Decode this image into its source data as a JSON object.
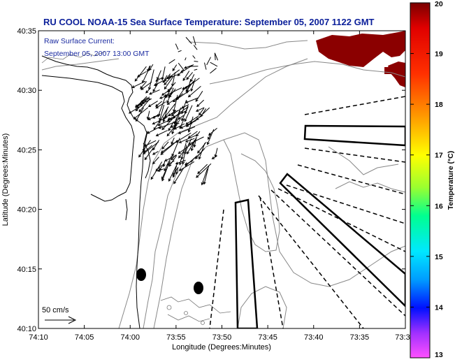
{
  "title": "RU COOL  NOAA-15  Sea Surface Temperature:  September 05, 2007 1122 GMT",
  "overlay_note": {
    "line1": "Raw Surface Current:",
    "line2": "September 05, 2007 13:00 GMT"
  },
  "scale_label": "50 cm/s",
  "x_axis": {
    "label": "Longitude (Degrees:Minutes)",
    "ticks": [
      "74:10",
      "74:05",
      "74:00",
      "73:55",
      "73:50",
      "73:45",
      "73:40",
      "73:35",
      "73:3"
    ]
  },
  "y_axis": {
    "label": "Latitude (Degrees:Minutes)",
    "ticks": [
      "40:35",
      "40:30",
      "40:25",
      "40:20",
      "40:15",
      "40:10"
    ]
  },
  "colorbar": {
    "label": "Temperature (°C)",
    "ticks": [
      "20",
      "19",
      "18",
      "17",
      "16",
      "15",
      "14",
      "13"
    ],
    "colors": [
      "#7a0000",
      "#ff0000",
      "#ff8c00",
      "#ffff00",
      "#00ff7f",
      "#00ffff",
      "#0060ff",
      "#0000ff",
      "#ff00ff"
    ]
  },
  "colors": {
    "title_blue": "#0b1f9a",
    "sst_warm": "#8b0000",
    "land_line": "#000000",
    "bathymetry": "#888888"
  }
}
